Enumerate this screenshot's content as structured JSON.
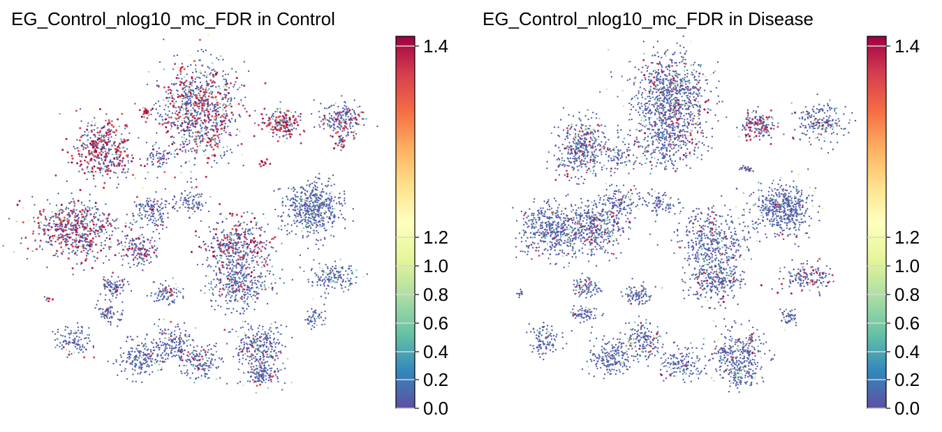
{
  "chart_data": [
    {
      "type": "scatter",
      "title": "EG_Control_nlog10_mc_FDR in Control",
      "condition": "Control",
      "xlabel": "",
      "ylabel": "",
      "grid": false,
      "colormap": "Spectral_r",
      "colorbar": {
        "ticks": [
          0.0,
          0.2,
          0.4,
          0.6,
          0.8,
          1.0,
          1.2,
          1.4
        ],
        "tick_labels": [
          "0.0",
          "0.2",
          "0.4",
          "0.6",
          "0.8",
          "1.0",
          "1.2",
          "1.4"
        ],
        "range": [
          0.0,
          1.42
        ]
      }
    },
    {
      "type": "scatter",
      "title": "EG_Control_nlog10_mc_FDR in Disease",
      "condition": "Disease",
      "xlabel": "",
      "ylabel": "",
      "grid": false,
      "colormap": "Spectral_r",
      "colorbar": {
        "ticks": [
          0.0,
          0.2,
          0.4,
          0.6,
          0.8,
          1.0,
          1.2,
          1.4
        ],
        "tick_labels": [
          "0.0",
          "0.2",
          "0.4",
          "0.6",
          "0.8",
          "1.0",
          "1.2",
          "1.4"
        ],
        "range": [
          0.0,
          1.42
        ]
      }
    }
  ],
  "colors": {
    "low": "#5e4fa2",
    "mid": "#ffffbf",
    "high": "#9e0142"
  }
}
